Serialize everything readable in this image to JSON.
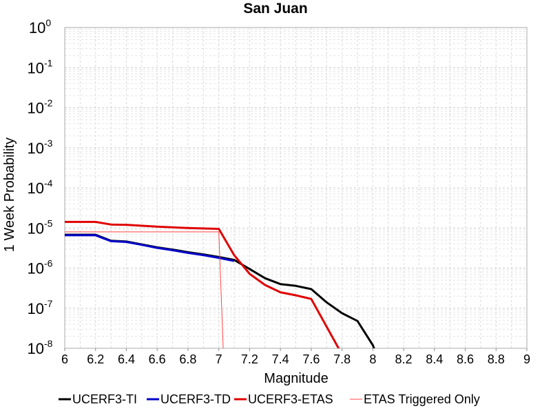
{
  "chart_data": {
    "type": "line",
    "title": "San Juan",
    "xlabel": "Magnitude",
    "ylabel": "1 Week Probability",
    "xlim": [
      6,
      9
    ],
    "ylim": [
      1e-08,
      1
    ],
    "yscale": "log",
    "grid": true,
    "legend_position": "bottom",
    "x_ticks": [
      "6",
      "6.2",
      "6.4",
      "6.6",
      "6.8",
      "7",
      "7.2",
      "7.4",
      "7.6",
      "7.8",
      "8",
      "8.2",
      "8.4",
      "8.6",
      "8.8",
      "9"
    ],
    "y_ticks": [
      {
        "base": "10",
        "exp": "0"
      },
      {
        "base": "10",
        "exp": "-1"
      },
      {
        "base": "10",
        "exp": "-2"
      },
      {
        "base": "10",
        "exp": "-3"
      },
      {
        "base": "10",
        "exp": "-4"
      },
      {
        "base": "10",
        "exp": "-5"
      },
      {
        "base": "10",
        "exp": "-6"
      },
      {
        "base": "10",
        "exp": "-7"
      },
      {
        "base": "10",
        "exp": "-8"
      }
    ],
    "series": [
      {
        "name": "UCERF3-TI",
        "color": "#000000",
        "width": 3,
        "points": [
          [
            6.0,
            6.8e-06
          ],
          [
            6.2,
            6.8e-06
          ],
          [
            6.3,
            4.8e-06
          ],
          [
            6.4,
            4.6e-06
          ],
          [
            6.5,
            3.9e-06
          ],
          [
            6.6,
            3.3e-06
          ],
          [
            6.7,
            2.9e-06
          ],
          [
            6.8,
            2.5e-06
          ],
          [
            6.9,
            2.2e-06
          ],
          [
            7.0,
            1.9e-06
          ],
          [
            7.1,
            1.6e-06
          ],
          [
            7.2,
            9.5e-07
          ],
          [
            7.3,
            5.6e-07
          ],
          [
            7.4,
            4e-07
          ],
          [
            7.5,
            3.6e-07
          ],
          [
            7.6,
            3e-07
          ],
          [
            7.7,
            1.4e-07
          ],
          [
            7.8,
            7.5e-08
          ],
          [
            7.9,
            4.8e-08
          ],
          [
            8.0,
            1.2e-08
          ],
          [
            8.03,
            6e-09
          ]
        ]
      },
      {
        "name": "UCERF3-TD",
        "color": "#0000cc",
        "width": 3,
        "points": [
          [
            6.0,
            6.6e-06
          ],
          [
            6.2,
            6.6e-06
          ],
          [
            6.3,
            4.7e-06
          ],
          [
            6.4,
            4.5e-06
          ],
          [
            6.5,
            3.8e-06
          ],
          [
            6.6,
            3.2e-06
          ],
          [
            6.7,
            2.8e-06
          ],
          [
            6.8,
            2.4e-06
          ],
          [
            6.9,
            2.1e-06
          ],
          [
            7.0,
            1.8e-06
          ],
          [
            7.1,
            1.5e-06
          ]
        ]
      },
      {
        "name": "UCERF3-ETAS",
        "color": "#e00000",
        "width": 3,
        "points": [
          [
            6.0,
            1.42e-05
          ],
          [
            6.2,
            1.42e-05
          ],
          [
            6.3,
            1.22e-05
          ],
          [
            6.4,
            1.2e-05
          ],
          [
            6.6,
            1.08e-05
          ],
          [
            6.8,
            1e-05
          ],
          [
            7.0,
            9.5e-06
          ],
          [
            7.1,
            2.1e-06
          ],
          [
            7.2,
            7.2e-07
          ],
          [
            7.3,
            3.8e-07
          ],
          [
            7.4,
            2.5e-07
          ],
          [
            7.5,
            2.1e-07
          ],
          [
            7.6,
            1.7e-07
          ],
          [
            7.8,
            7e-09
          ]
        ]
      },
      {
        "name": "ETAS Triggered Only",
        "color": "#ff4444",
        "width": 1,
        "points": [
          [
            6.0,
            8e-06
          ],
          [
            7.0,
            8e-06
          ],
          [
            7.03,
            7e-09
          ]
        ]
      }
    ]
  }
}
